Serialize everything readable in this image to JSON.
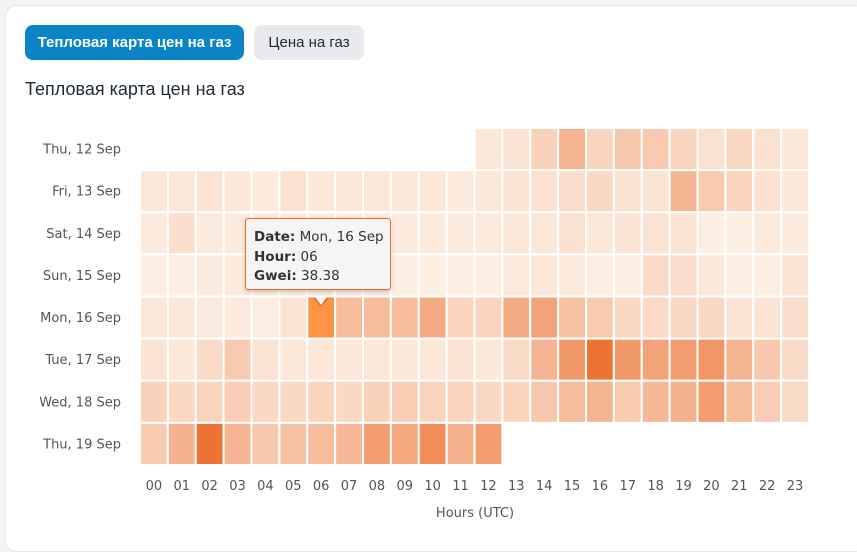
{
  "tabs": [
    {
      "label": "Тепловая карта цен на газ",
      "active": true
    },
    {
      "label": "Цена на газ",
      "active": false
    }
  ],
  "chart_title": "Тепловая карта цен на газ",
  "tooltip": {
    "date_label": "Date:",
    "date": "Mon, 16 Sep",
    "hour_label": "Hour:",
    "hour": "06",
    "gwei_label": "Gwei:",
    "gwei": "38.38"
  },
  "colors": {
    "low": "#fdf1e6",
    "high": "#ec6a28",
    "hover": "#fd9345",
    "accent": "#0a84c6"
  },
  "chart_data": {
    "type": "heatmap",
    "title": "Тепловая карта цен на газ",
    "xlabel": "Hours (UTC)",
    "ylabel": "",
    "x": [
      "00",
      "01",
      "02",
      "03",
      "04",
      "05",
      "06",
      "07",
      "08",
      "09",
      "10",
      "11",
      "12",
      "13",
      "14",
      "15",
      "16",
      "17",
      "18",
      "19",
      "20",
      "21",
      "22",
      "23"
    ],
    "y": [
      "Thu, 12 Sep",
      "Fri, 13 Sep",
      "Sat, 14 Sep",
      "Sun, 15 Sep",
      "Mon, 16 Sep",
      "Tue, 17 Sep",
      "Wed, 18 Sep",
      "Thu, 19 Sep"
    ],
    "value_unit": "Gwei",
    "value_range": [
      5,
      48
    ],
    "values": [
      [
        null,
        null,
        null,
        null,
        null,
        null,
        null,
        null,
        null,
        null,
        null,
        null,
        8,
        9,
        15,
        24,
        14,
        18,
        17,
        14,
        10,
        13,
        10,
        8
      ],
      [
        8,
        8,
        9,
        8,
        7,
        10,
        8,
        8,
        8,
        8,
        8,
        7,
        8,
        9,
        10,
        11,
        13,
        10,
        9,
        24,
        17,
        14,
        10,
        8
      ],
      [
        7,
        11,
        7,
        7,
        7,
        7,
        7,
        7,
        7,
        7,
        7,
        7,
        7,
        8,
        8,
        10,
        8,
        9,
        9,
        9,
        6,
        6,
        7,
        7
      ],
      [
        6,
        6,
        7,
        7,
        6,
        6,
        6,
        6,
        6,
        6,
        6,
        6,
        6,
        7,
        8,
        7,
        6,
        6,
        12,
        11,
        8,
        6,
        6,
        9
      ],
      [
        8,
        8,
        7,
        7,
        6,
        9,
        38.38,
        22,
        22,
        22,
        27,
        14,
        14,
        27,
        30,
        20,
        17,
        13,
        12,
        13,
        13,
        9,
        9,
        11
      ],
      [
        9,
        8,
        12,
        17,
        9,
        8,
        8,
        8,
        8,
        8,
        8,
        9,
        8,
        12,
        24,
        33,
        45,
        33,
        30,
        32,
        34,
        24,
        18,
        12
      ],
      [
        15,
        13,
        14,
        16,
        13,
        13,
        14,
        13,
        15,
        16,
        14,
        14,
        13,
        14,
        18,
        22,
        24,
        17,
        23,
        25,
        32,
        22,
        16,
        12
      ],
      [
        17,
        25,
        45,
        24,
        18,
        20,
        22,
        23,
        32,
        29,
        37,
        25,
        32,
        null,
        null,
        null,
        null,
        null,
        null,
        null,
        null,
        null,
        null,
        null
      ]
    ],
    "highlight": {
      "row": "Mon, 16 Sep",
      "col": "06"
    },
    "grid": false
  }
}
